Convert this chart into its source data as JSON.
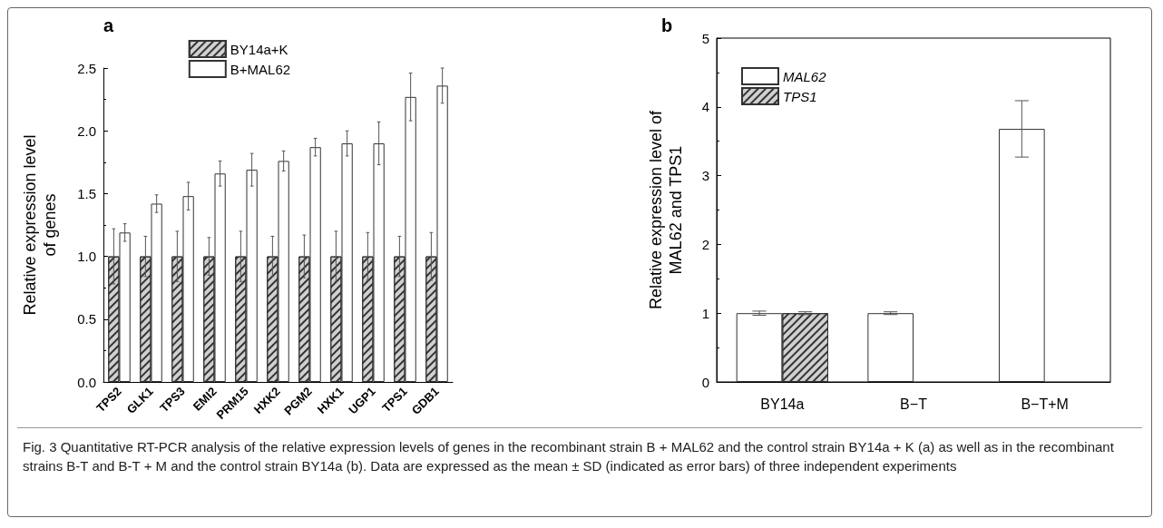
{
  "chart_data": [
    {
      "type": "bar",
      "title": "a",
      "ylabel": "Relative expression level\nof genes",
      "categories": [
        "TPS2",
        "GLK1",
        "TPS3",
        "EMI2",
        "PRM15",
        "HXK2",
        "PGM2",
        "HXK1",
        "UGP1",
        "TPS1",
        "GDB1"
      ],
      "series": [
        {
          "name": "BY14a+K",
          "color": "#d0d0d0",
          "values": [
            1,
            1,
            1,
            1,
            1,
            1,
            1,
            1,
            1,
            1,
            1
          ],
          "errors": [
            0.22,
            0.16,
            0.2,
            0.15,
            0.2,
            0.16,
            0.17,
            0.2,
            0.19,
            0.16,
            0.19
          ]
        },
        {
          "name": "B+MAL62",
          "color": "#ffffff",
          "values": [
            1.19,
            1.42,
            1.48,
            1.66,
            1.69,
            1.76,
            1.87,
            1.9,
            1.9,
            2.27,
            2.36
          ],
          "errors": [
            0.07,
            0.07,
            0.11,
            0.1,
            0.13,
            0.08,
            0.07,
            0.1,
            0.17,
            0.19,
            0.14
          ]
        }
      ],
      "ylim": [
        0,
        2.5
      ],
      "yticks": [
        {
          "value": 0,
          "label": "0.0"
        },
        0.5,
        {
          "value": 1,
          "label": "1.0"
        },
        1.5,
        {
          "value": 2,
          "label": "2.0"
        },
        2.5
      ],
      "grid": false,
      "legend": "top left",
      "annotations": [
        "Fig. 3 Quantitative RT-PCR analysis of the relative expression levels of genes in the recombinant strain B + MAL62 and the control strain BY14a + K (a) as well as in the recombinant strains B-T and B-T + M and the control strain BY14a (b). Data are expressed as the mean ± SD (indicated as error bars) of three independent experiments"
      ]
    },
    {
      "type": "bar",
      "title": "b",
      "ylabel": "Relative expression level of\nMAL62 and TPS1",
      "categories": [
        "BY14a",
        "B−T",
        "B−T+M"
      ],
      "series": [
        {
          "name": "MAL62",
          "color": "#ffffff",
          "values": [
            1,
            1,
            3.68
          ],
          "errors": [
            0.03,
            0.02,
            0.41
          ]
        },
        {
          "name": "TPS1",
          "color": "#d0d0d0",
          "values": [
            1,
            null,
            null
          ],
          "errors": [
            0.02,
            null,
            null
          ]
        }
      ],
      "ylim": [
        0,
        5
      ],
      "yticks": [
        0,
        1,
        2,
        3,
        4,
        5
      ],
      "grid": false,
      "legend": "top left"
    }
  ]
}
